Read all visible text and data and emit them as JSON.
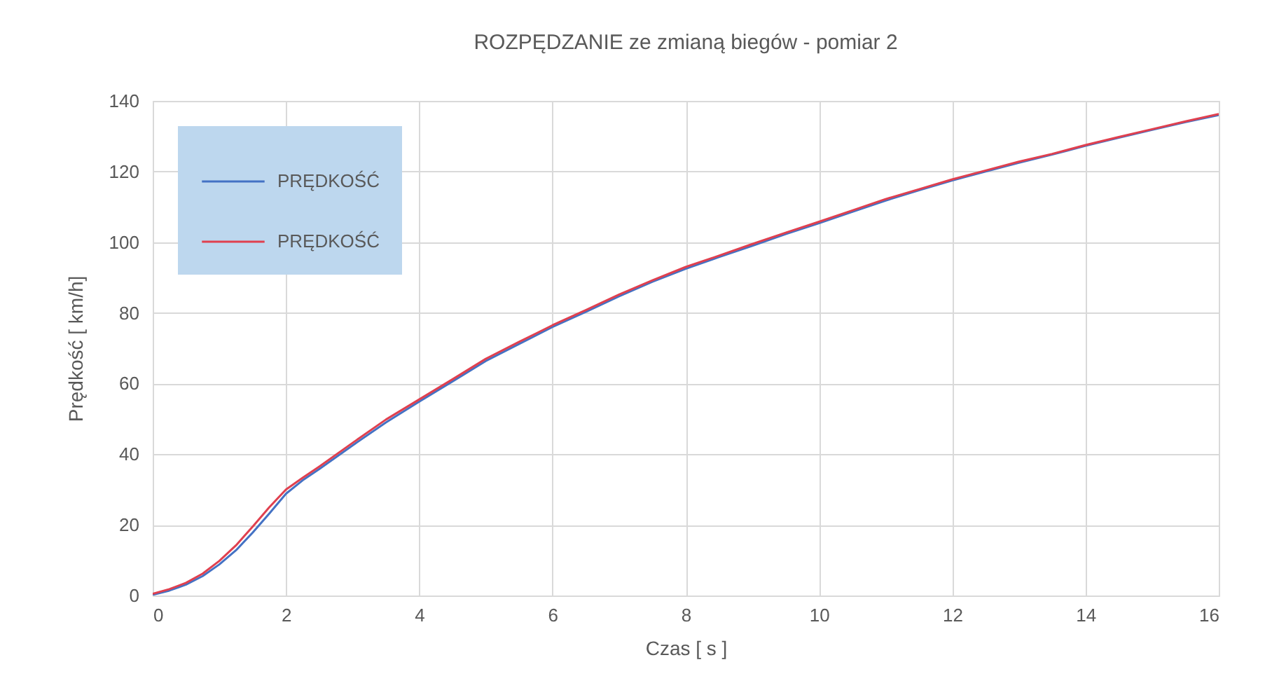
{
  "chart_data": {
    "type": "line",
    "title": "ROZPĘDZANIE ze zmianą biegów - pomiar 2",
    "xlabel": "Czas [ s ]",
    "ylabel": "Prędkość [ km/h]",
    "x": [
      0,
      0.25,
      0.5,
      0.75,
      1,
      1.25,
      1.5,
      1.75,
      2,
      2.25,
      2.5,
      3,
      3.5,
      4,
      4.5,
      5,
      5.5,
      6,
      6.5,
      7,
      7.5,
      8,
      8.5,
      9,
      9.5,
      10,
      10.5,
      11,
      11.5,
      12,
      12.5,
      13,
      13.5,
      14,
      14.5,
      15,
      15.5,
      16
    ],
    "series": [
      {
        "name": "PRĘDKOŚĆ",
        "color": "#4472c4",
        "values": [
          0.2,
          1.4,
          3.1,
          5.5,
          8.8,
          12.8,
          17.8,
          23.2,
          28.8,
          32.6,
          35.8,
          42.5,
          49.0,
          54.9,
          60.6,
          66.4,
          71.2,
          76.0,
          80.3,
          84.7,
          88.8,
          92.5,
          95.8,
          99.0,
          102.3,
          105.4,
          108.6,
          111.8,
          114.7,
          117.5,
          120.0,
          122.5,
          124.8,
          127.3,
          129.6,
          131.8,
          134.0,
          136.0
        ]
      },
      {
        "name": "PRĘDKOŚĆ",
        "color": "#e0404f",
        "values": [
          0.5,
          1.8,
          3.6,
          6.2,
          9.8,
          14.2,
          19.5,
          25.0,
          30.0,
          33.3,
          36.5,
          43.2,
          49.8,
          55.5,
          61.2,
          67.0,
          71.8,
          76.5,
          80.8,
          85.2,
          89.2,
          93.0,
          96.2,
          99.5,
          102.7,
          105.8,
          109.0,
          112.2,
          115.0,
          117.8,
          120.3,
          122.8,
          125.0,
          127.5,
          129.8,
          132.0,
          134.2,
          136.3
        ]
      }
    ],
    "xlim": [
      0,
      16
    ],
    "xticks": [
      0,
      2,
      4,
      6,
      8,
      10,
      12,
      14,
      16
    ],
    "ylim": [
      0,
      140
    ],
    "yticks": [
      0,
      20,
      40,
      60,
      80,
      100,
      120,
      140
    ],
    "grid": true,
    "legend": "top left",
    "line_style": "solid"
  }
}
